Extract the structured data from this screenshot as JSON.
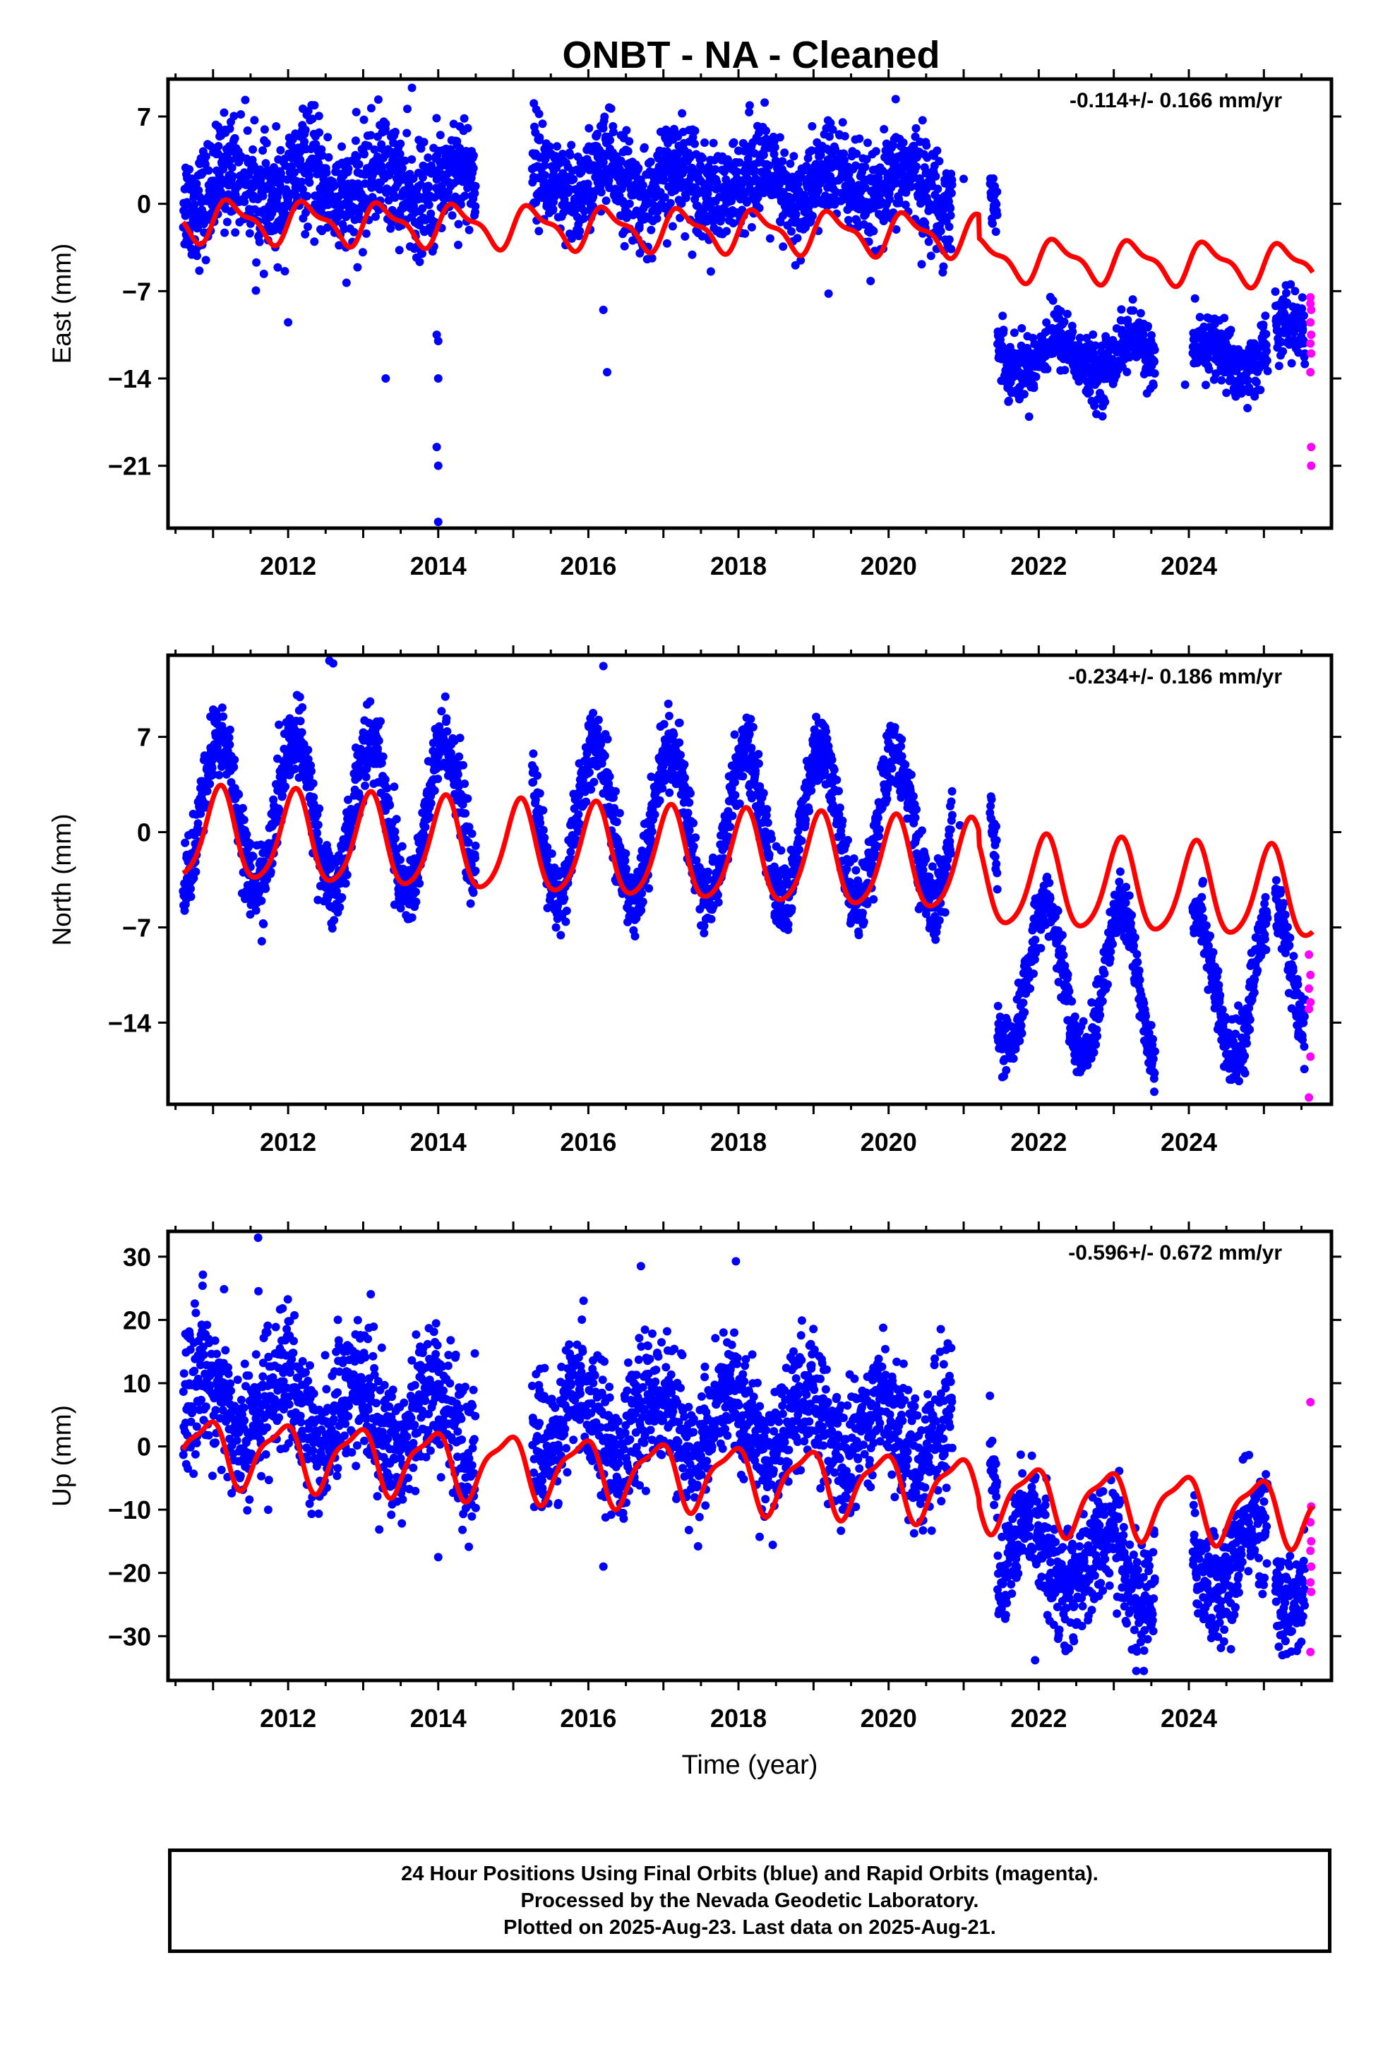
{
  "title": "ONBT  - NA - Cleaned",
  "colors": {
    "final": "#0000ff",
    "rapid": "#ff00ff",
    "model": "#ff0000",
    "axis": "#000000"
  },
  "chart_data": [
    {
      "type": "scatter",
      "component": "east",
      "ylabel": "East (mm)",
      "rate": "-0.114+/- 0.166 mm/yr",
      "xlim": [
        2010.4,
        2025.9
      ],
      "ylim": [
        -26,
        10
      ],
      "yticks": [
        7,
        0,
        -7,
        -14,
        -21
      ],
      "ytick_labels": [
        "7",
        "0",
        "−7",
        "−14",
        "−21"
      ],
      "xticks": [
        2012,
        2014,
        2016,
        2018,
        2020,
        2022,
        2024
      ],
      "xtick_labels": [
        "2012",
        "2014",
        "2016",
        "2018",
        "2020",
        "2022",
        "2024"
      ],
      "segments": [
        {
          "x": [
            2010.6,
            2014.5
          ],
          "start": 1.3,
          "end": 1.5,
          "sd": 2.2
        },
        {
          "x": [
            2015.25,
            2020.85
          ],
          "start": 1.8,
          "end": 1.2,
          "sd": 2.0
        },
        {
          "x": [
            2021.35,
            2021.45
          ],
          "start": 0.0,
          "end": -1.0,
          "sd": 1.2
        },
        {
          "x": [
            2021.45,
            2023.55
          ],
          "start": -11.8,
          "end": -12.4,
          "sd": 1.2
        },
        {
          "x": [
            2024.05,
            2025.05
          ],
          "start": -13.0,
          "end": -11.5,
          "sd": 1.3
        },
        {
          "x": [
            2025.15,
            2025.55
          ],
          "start": -11.5,
          "end": -10.0,
          "sd": 1.3
        }
      ],
      "seasonal": [
        1.5,
        0.0
      ],
      "outliers": [
        [
          2014.0,
          -25.5
        ],
        [
          2014.0,
          -21.0
        ],
        [
          2013.98,
          -19.5
        ],
        [
          2014.0,
          -14.0
        ],
        [
          2014.0,
          -11.0
        ],
        [
          2013.98,
          -10.5
        ],
        [
          2012.0,
          -9.5
        ],
        [
          2013.3,
          -14.0
        ],
        [
          2016.25,
          -13.5
        ],
        [
          2016.2,
          -8.5
        ],
        [
          2019.2,
          -7.2
        ],
        [
          2021.0,
          2.0
        ],
        [
          2023.95,
          -14.5
        ],
        [
          2013.65,
          9.3
        ]
      ],
      "rapid": [
        [
          2025.62,
          -7.5
        ],
        [
          2025.62,
          -8.0
        ],
        [
          2025.63,
          -8.5
        ],
        [
          2025.62,
          -9.5
        ],
        [
          2025.63,
          -10.5
        ],
        [
          2025.62,
          -11.2
        ],
        [
          2025.63,
          -12.0
        ],
        [
          2025.62,
          -13.5
        ],
        [
          2025.63,
          -19.5
        ],
        [
          2025.63,
          -21.0
        ]
      ],
      "model": {
        "base": -1.3,
        "slope": -0.114,
        "amp": 1.5,
        "phase": -0.1,
        "amp2": 0.6,
        "phase2": 0.15,
        "jumps": [
          [
            2021.2,
            -1.9
          ]
        ],
        "x": [
          2010.6,
          2025.65
        ]
      }
    },
    {
      "type": "scatter",
      "component": "north",
      "ylabel": "North (mm)",
      "rate": "-0.234+/- 0.186 mm/yr",
      "xlim": [
        2010.4,
        2025.9
      ],
      "ylim": [
        -20,
        13
      ],
      "yticks": [
        7,
        0,
        -7,
        -14
      ],
      "ytick_labels": [
        "7",
        "0",
        "−7",
        "−14"
      ],
      "xticks": [
        2012,
        2014,
        2016,
        2018,
        2020,
        2022,
        2024
      ],
      "xtick_labels": [
        "2012",
        "2014",
        "2016",
        "2018",
        "2020",
        "2022",
        "2024"
      ],
      "segments": [
        {
          "x": [
            2010.6,
            2014.5
          ],
          "start": 1.5,
          "end": 1.0,
          "sd": 1.4
        },
        {
          "x": [
            2015.25,
            2020.85
          ],
          "start": 0.8,
          "end": 0.2,
          "sd": 1.3
        },
        {
          "x": [
            2021.35,
            2021.45
          ],
          "start": 2.5,
          "end": 1.0,
          "sd": 1.0
        },
        {
          "x": [
            2021.45,
            2023.55
          ],
          "start": -10.5,
          "end": -11.5,
          "sd": 1.1
        },
        {
          "x": [
            2024.05,
            2025.05
          ],
          "start": -11.0,
          "end": -11.5,
          "sd": 1.2
        },
        {
          "x": [
            2025.15,
            2025.55
          ],
          "start": -10.0,
          "end": -9.5,
          "sd": 1.2
        }
      ],
      "seasonal": [
        5.5,
        1.0
      ],
      "outliers": [
        [
          2012.55,
          12.6
        ],
        [
          2016.2,
          12.2
        ],
        [
          2012.6,
          12.4
        ],
        [
          2020.95,
          0.5
        ]
      ],
      "rapid": [
        [
          2025.6,
          -9.0
        ],
        [
          2025.62,
          -10.5
        ],
        [
          2025.6,
          -11.5
        ],
        [
          2025.62,
          -12.5
        ],
        [
          2025.6,
          -13.0
        ],
        [
          2025.62,
          -16.5
        ],
        [
          2025.6,
          -19.5
        ]
      ],
      "model": {
        "base": -0.2,
        "slope": -0.234,
        "amp": 3.3,
        "phase": 1.0,
        "amp2": 0.5,
        "phase2": 0.0,
        "jumps": [
          [
            2021.2,
            -1.0
          ]
        ],
        "x": [
          2010.6,
          2025.65
        ]
      }
    },
    {
      "type": "scatter",
      "component": "up",
      "ylabel": "Up (mm)",
      "rate": "-0.596+/- 0.672 mm/yr",
      "xlim": [
        2010.4,
        2025.9
      ],
      "ylim": [
        -37,
        34
      ],
      "yticks": [
        30,
        20,
        10,
        0,
        -10,
        -20,
        -30
      ],
      "ytick_labels": [
        "30",
        "20",
        "10",
        "0",
        "−10",
        "−20",
        "−30"
      ],
      "xticks": [
        2012,
        2014,
        2016,
        2018,
        2020,
        2022,
        2024
      ],
      "xtick_labels": [
        "2012",
        "2014",
        "2016",
        "2018",
        "2020",
        "2022",
        "2024"
      ],
      "xlabel": "Time (year)",
      "segments": [
        {
          "x": [
            2010.6,
            2014.5
          ],
          "start": 7.0,
          "end": 4.0,
          "sd": 5.5
        },
        {
          "x": [
            2015.25,
            2020.85
          ],
          "start": 4.0,
          "end": 2.5,
          "sd": 5.0
        },
        {
          "x": [
            2021.35,
            2021.45
          ],
          "start": 2.0,
          "end": -2.0,
          "sd": 3.0
        },
        {
          "x": [
            2021.45,
            2023.55
          ],
          "start": -16.0,
          "end": -20.0,
          "sd": 4.5
        },
        {
          "x": [
            2024.05,
            2025.05
          ],
          "start": -19.0,
          "end": -16.0,
          "sd": 4.5
        },
        {
          "x": [
            2025.15,
            2025.55
          ],
          "start": -22.0,
          "end": -20.0,
          "sd": 4.0
        }
      ],
      "seasonal": [
        5.0,
        2.2
      ],
      "outliers": [
        [
          2011.6,
          33.0
        ],
        [
          2016.7,
          28.5
        ],
        [
          2014.0,
          -17.5
        ],
        [
          2016.2,
          -19.0
        ],
        [
          2023.3,
          -35.5
        ],
        [
          2023.4,
          -35.5
        ],
        [
          2021.35,
          8.0
        ]
      ],
      "rapid": [
        [
          2025.62,
          7.0
        ],
        [
          2025.63,
          -9.5
        ],
        [
          2025.62,
          -12.0
        ],
        [
          2025.63,
          -15.0
        ],
        [
          2025.62,
          -16.5
        ],
        [
          2025.63,
          -19.0
        ],
        [
          2025.62,
          -21.5
        ],
        [
          2025.63,
          -23.0
        ],
        [
          2025.62,
          -32.5
        ]
      ],
      "model": {
        "base": -0.5,
        "slope": -0.596,
        "amp": 4.8,
        "phase": 2.2,
        "amp2": 1.5,
        "phase2": 0.5,
        "jumps": [
          [
            2021.2,
            -1.0
          ]
        ],
        "x": [
          2010.6,
          2025.65
        ]
      }
    }
  ],
  "footer": {
    "line1": "24 Hour Positions Using Final Orbits (blue) and Rapid Orbits (magenta).",
    "line2": "Processed by the Nevada Geodetic Laboratory.",
    "line3": "Plotted on 2025-Aug-23. Last data on 2025-Aug-21."
  }
}
